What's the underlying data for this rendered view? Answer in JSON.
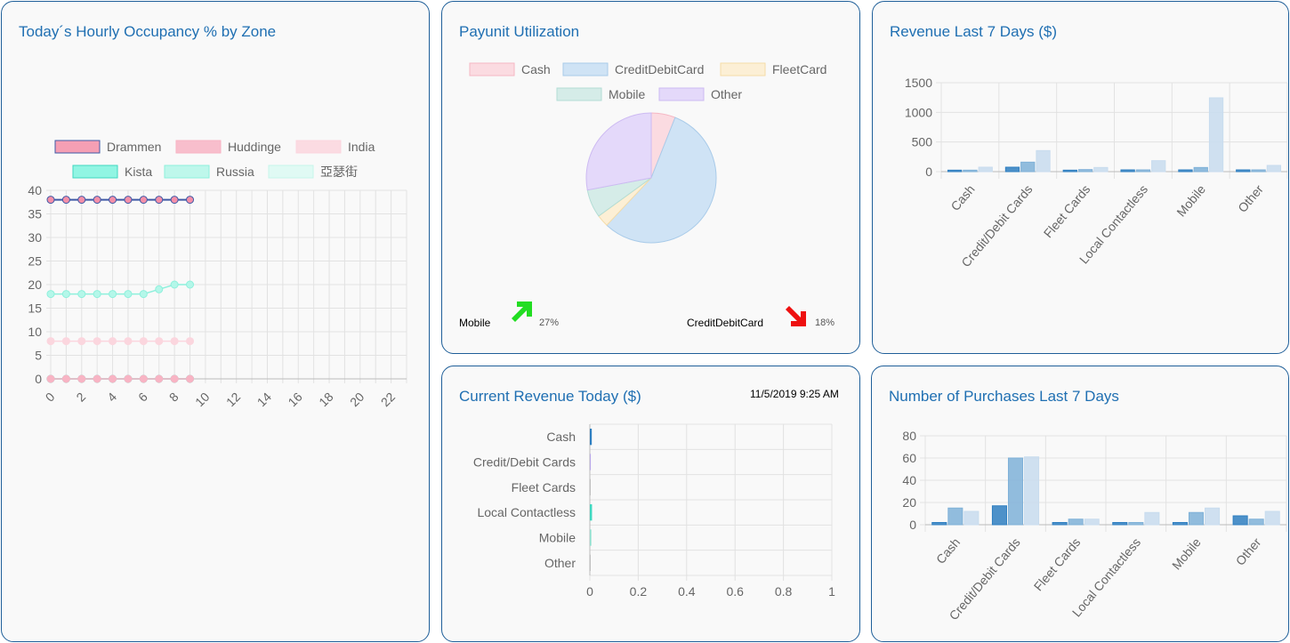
{
  "occupancy": {
    "title": "Today´s Hourly Occupancy % by Zone",
    "chart_data": {
      "type": "line",
      "x": [
        0,
        1,
        2,
        3,
        4,
        5,
        6,
        7,
        8,
        9
      ],
      "xticks": [
        "0",
        "2",
        "4",
        "6",
        "8",
        "10",
        "12",
        "14",
        "16",
        "18",
        "20",
        "22"
      ],
      "xlim": [
        0,
        23
      ],
      "ylim": [
        0,
        40
      ],
      "yticks": [
        "0",
        "5",
        "10",
        "15",
        "20",
        "25",
        "30",
        "35",
        "40"
      ],
      "grid": true,
      "legend_position": "top",
      "series": [
        {
          "name": "Drammen",
          "color": "#f48fa8",
          "border": "#3f5aa6",
          "values": [
            38,
            38,
            38,
            38,
            38,
            38,
            38,
            38,
            38,
            38
          ]
        },
        {
          "name": "Huddinge",
          "color": "#f8b4c4",
          "border": "#f8b4c4",
          "values": [
            0,
            0,
            0,
            0,
            0,
            0,
            0,
            0,
            0,
            0
          ]
        },
        {
          "name": "India",
          "color": "#fbd6de",
          "border": "#fbd6de",
          "values": [
            8,
            8,
            8,
            8,
            8,
            8,
            8,
            8,
            8,
            8
          ]
        },
        {
          "name": "Kista",
          "color": "#7ff5df",
          "border": "#3fd8c0",
          "values": [
            0,
            0,
            0,
            0,
            0,
            0,
            0,
            0,
            0,
            0
          ]
        },
        {
          "name": "Russia",
          "color": "#b4f7e9",
          "border": "#8ef0dc",
          "values": [
            18,
            18,
            18,
            18,
            18,
            18,
            18,
            19,
            20,
            20
          ]
        },
        {
          "name": "亞瑟街",
          "color": "#dcfaf3",
          "border": "#c6f5ea",
          "values": [
            0,
            0,
            0,
            0,
            0,
            0,
            0,
            0,
            0,
            0
          ]
        }
      ]
    }
  },
  "payunit": {
    "title": "Payunit Utilization",
    "chart_data": {
      "type": "pie",
      "legend_position": "top",
      "slices": [
        {
          "name": "Cash",
          "value": 6,
          "color": "#fbdbe1",
          "border": "#f5b7c4"
        },
        {
          "name": "CreditDebitCard",
          "value": 56,
          "color": "#cfe3f5",
          "border": "#a9cbe9"
        },
        {
          "name": "FleetCard",
          "value": 3,
          "color": "#fcefd5",
          "border": "#f5dca8"
        },
        {
          "name": "Mobile",
          "value": 7,
          "color": "#d5ece8",
          "border": "#b3ddd5"
        },
        {
          "name": "Other",
          "value": 28,
          "color": "#e4d9fa",
          "border": "#cdbaf2"
        }
      ]
    },
    "trends": {
      "up": {
        "label": "Mobile",
        "pct": "27%",
        "color": "#22dd22"
      },
      "down": {
        "label": "CreditDebitCard",
        "pct": "18%",
        "color": "#ee1111"
      }
    }
  },
  "revenue7": {
    "title": "Revenue Last 7 Days ($)",
    "chart_data": {
      "type": "bar",
      "categories": [
        "Cash",
        "Credit/Debit Cards",
        "Fleet Cards",
        "Local Contactless",
        "Mobile",
        "Other"
      ],
      "ylim": [
        0,
        1500
      ],
      "yticks": [
        "0",
        "500",
        "1000",
        "1500"
      ],
      "grid": true,
      "series": [
        {
          "color": "#2f7fc1",
          "values": [
            25,
            75,
            25,
            30,
            30,
            30
          ]
        },
        {
          "color": "#7fb1d8",
          "values": [
            25,
            160,
            35,
            30,
            70,
            30
          ]
        },
        {
          "color": "#c8dcee",
          "values": [
            75,
            355,
            70,
            185,
            1245,
            105
          ]
        }
      ]
    }
  },
  "current": {
    "title": "Current Revenue Today ($)",
    "timestamp": "11/5/2019 9:25 AM",
    "chart_data": {
      "type": "bar",
      "orientation": "horizontal",
      "categories": [
        "Cash",
        "Credit/Debit Cards",
        "Fleet Cards",
        "Local Contactless",
        "Mobile",
        "Other"
      ],
      "xlim": [
        0,
        1
      ],
      "xticks": [
        "0",
        "0.2",
        "0.4",
        "0.6",
        "0.8",
        "1"
      ],
      "grid": true,
      "values": [
        0.008,
        0.004,
        0.003,
        0.009,
        0.006,
        0.003
      ],
      "colors": [
        "#2f7fc1",
        "#b8a8e8",
        "#c0c0c0",
        "#3fd8c0",
        "#8fe0cf",
        "#c0c0c0"
      ]
    }
  },
  "purchases7": {
    "title": "Number of Purchases Last 7 Days",
    "chart_data": {
      "type": "bar",
      "categories": [
        "Cash",
        "Credit/Debit Cards",
        "Fleet Cards",
        "Local Contactless",
        "Mobile",
        "Other"
      ],
      "ylim": [
        0,
        80
      ],
      "yticks": [
        "0",
        "20",
        "40",
        "60",
        "80"
      ],
      "grid": true,
      "series": [
        {
          "color": "#2f7fc1",
          "values": [
            2,
            17,
            2,
            2,
            2,
            8
          ]
        },
        {
          "color": "#7fb1d8",
          "values": [
            15,
            60,
            5,
            2,
            11,
            5
          ]
        },
        {
          "color": "#c8dcee",
          "values": [
            12,
            61,
            5,
            11,
            15,
            12
          ]
        }
      ]
    }
  }
}
